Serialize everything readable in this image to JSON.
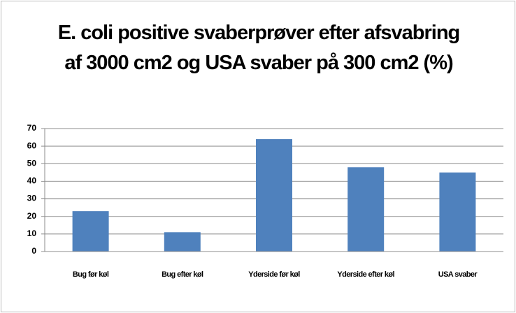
{
  "chart_data": {
    "type": "bar",
    "title": "E. coli positive svaberprøver efter afsvabring af 3000 cm2 og USA svaber på 300 cm2 (%)",
    "categories": [
      "Bug før køl",
      "Bug efter køl",
      "Yderside før køl",
      "Yderside efter køl",
      "USA svaber"
    ],
    "values": [
      23,
      11,
      64,
      48,
      45
    ],
    "color": "#4f81bd",
    "ylim": [
      0,
      70
    ],
    "yticks": [
      0,
      10,
      20,
      30,
      40,
      50,
      60,
      70
    ],
    "grid": true
  }
}
